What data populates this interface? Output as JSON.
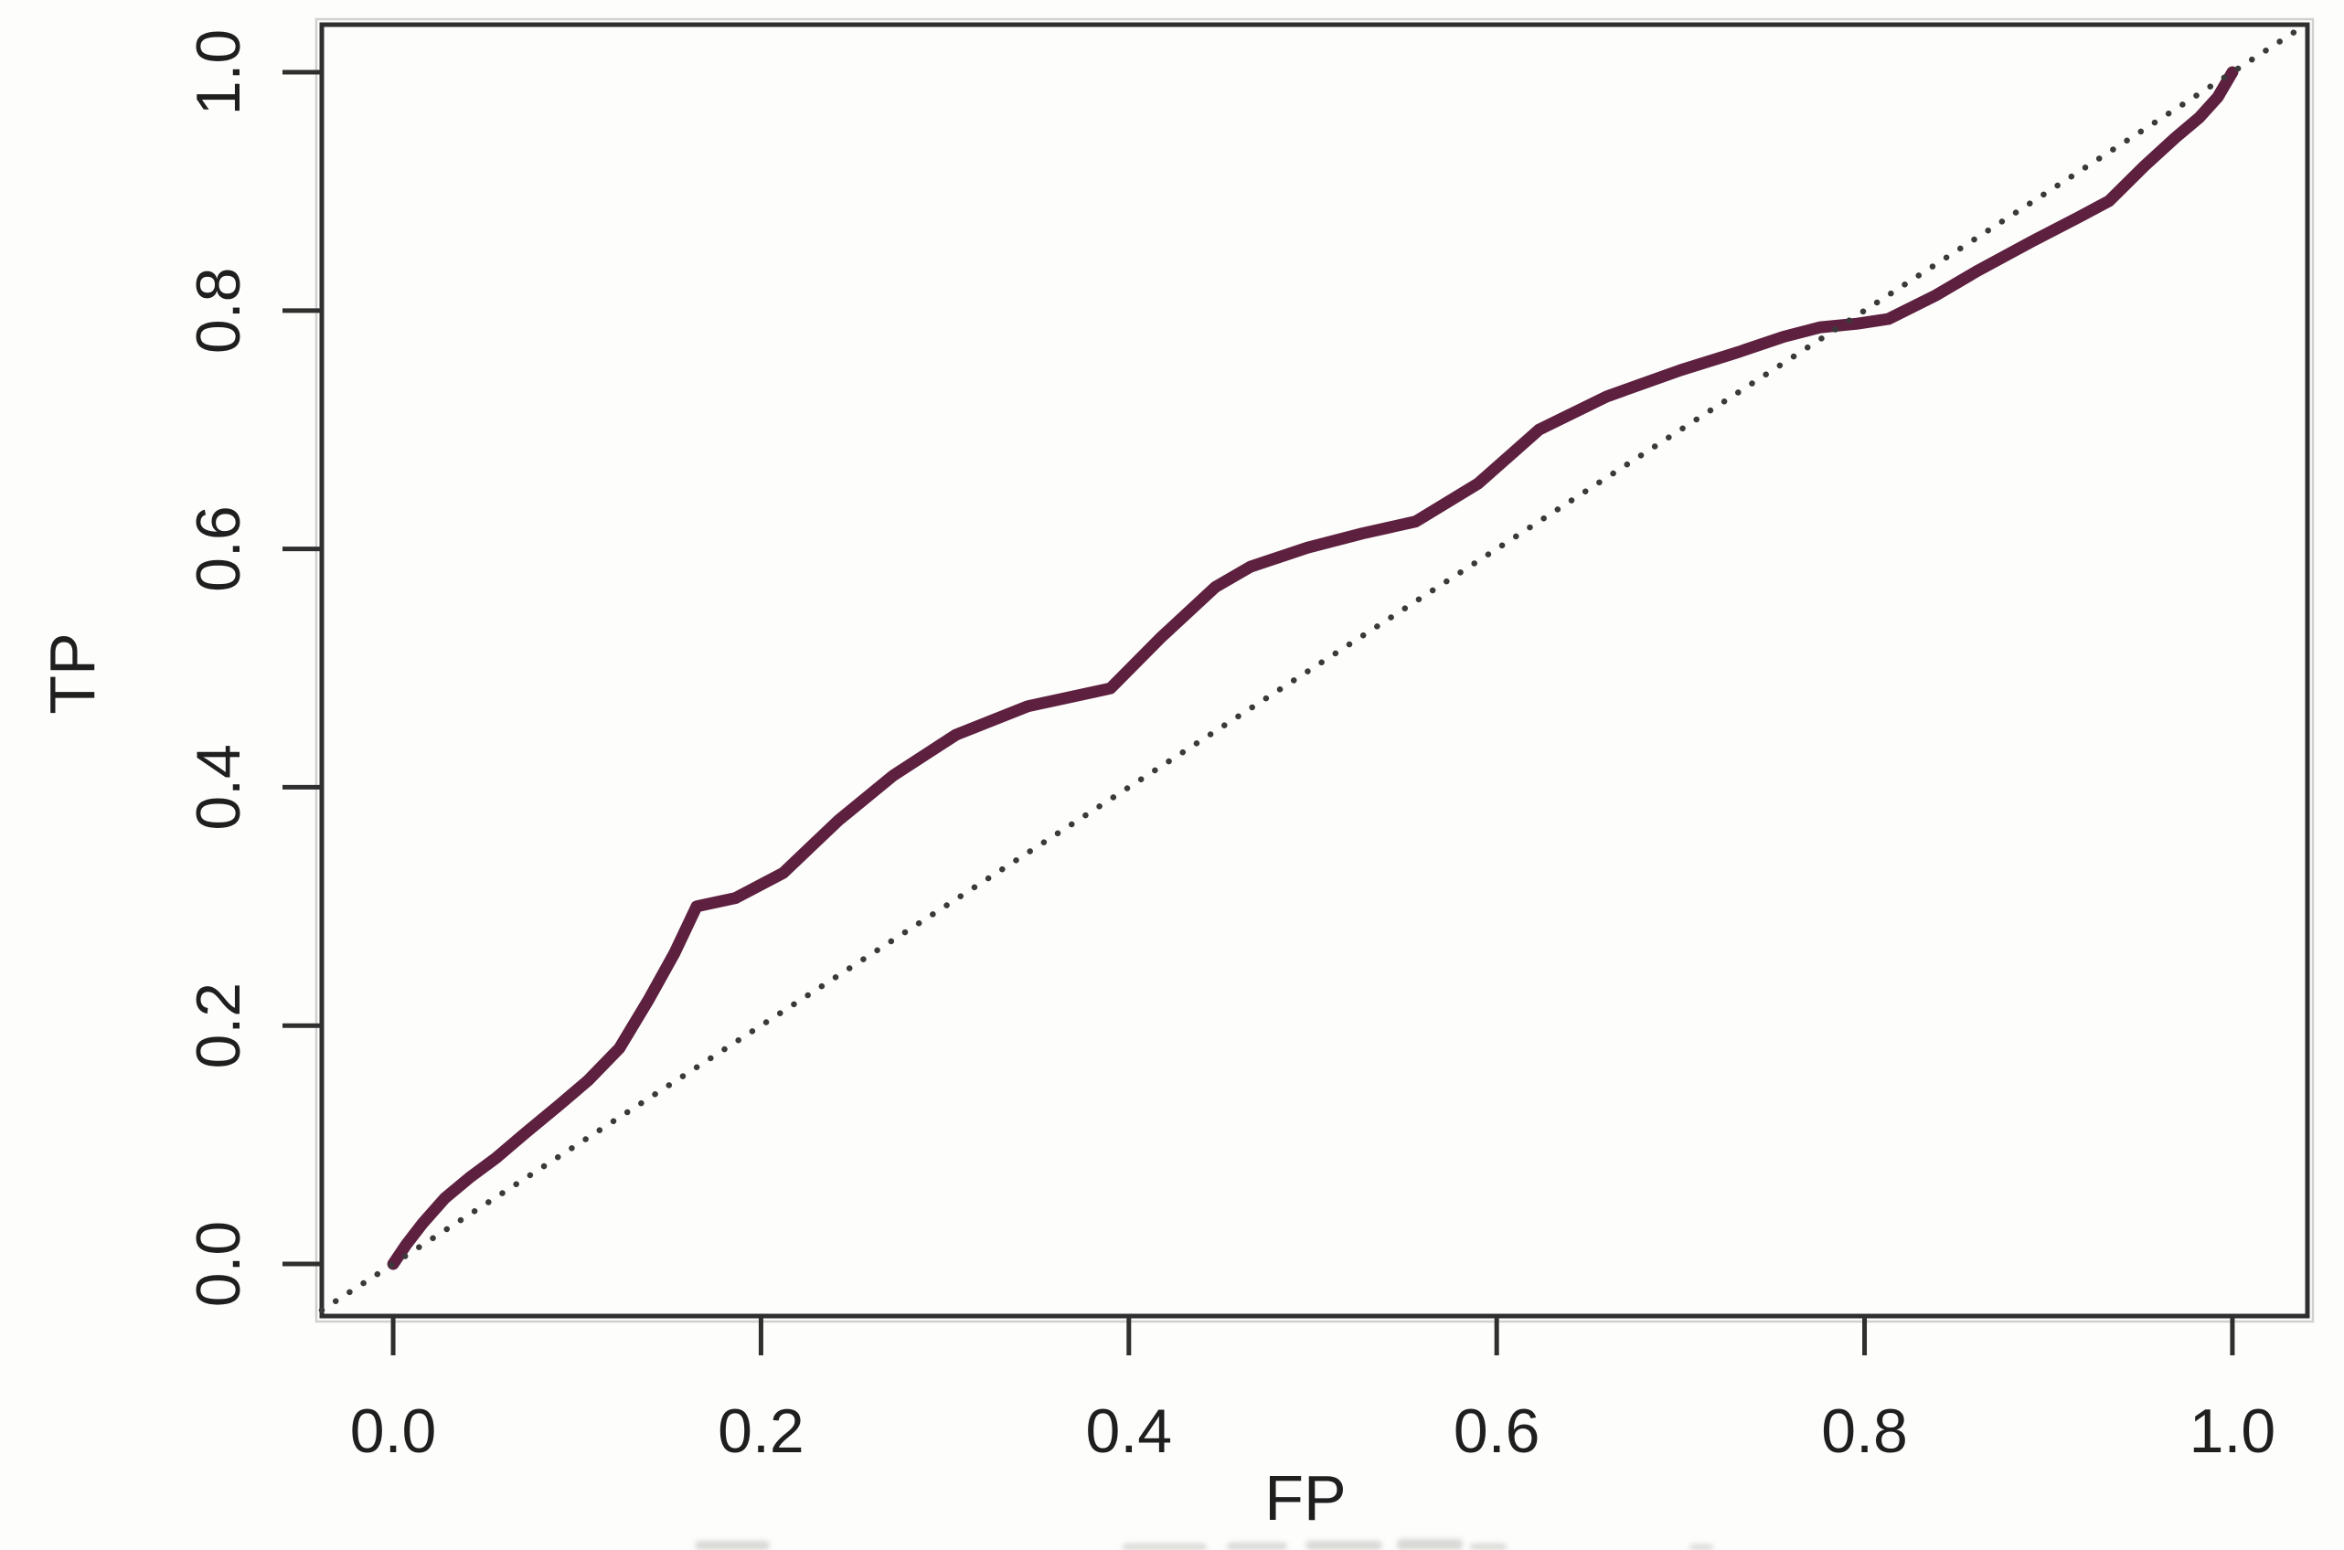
{
  "chart_data": {
    "type": "line",
    "title": "",
    "xlabel": "FP",
    "ylabel": "TP",
    "xlim": [
      -0.0388,
      1.0408
    ],
    "ylim": [
      -0.0437,
      1.0399
    ],
    "x_ticks": [
      0.0,
      0.2,
      0.4,
      0.6,
      0.8,
      1.0
    ],
    "y_ticks": [
      0.0,
      0.2,
      0.4,
      0.6,
      0.8,
      1.0
    ],
    "x_tick_labels": [
      "0.0",
      "0.2",
      "0.4",
      "0.6",
      "0.8",
      "1.0"
    ],
    "y_tick_labels": [
      "0.0",
      "0.2",
      "0.4",
      "0.6",
      "0.8",
      "1.0"
    ],
    "grid": false,
    "legend": "none",
    "series": [
      {
        "name": "roc-curve",
        "style": "solid",
        "color": "#5e203f",
        "stroke_width": 13,
        "points": [
          [
            0.0,
            0.0
          ],
          [
            0.007,
            0.016
          ],
          [
            0.016,
            0.034
          ],
          [
            0.028,
            0.055
          ],
          [
            0.042,
            0.073
          ],
          [
            0.056,
            0.089
          ],
          [
            0.072,
            0.11
          ],
          [
            0.09,
            0.133
          ],
          [
            0.106,
            0.154
          ],
          [
            0.123,
            0.181
          ],
          [
            0.139,
            0.222
          ],
          [
            0.153,
            0.261
          ],
          [
            0.165,
            0.3
          ],
          [
            0.186,
            0.307
          ],
          [
            0.212,
            0.328
          ],
          [
            0.242,
            0.372
          ],
          [
            0.272,
            0.41
          ],
          [
            0.306,
            0.444
          ],
          [
            0.345,
            0.468
          ],
          [
            0.39,
            0.483
          ],
          [
            0.417,
            0.525
          ],
          [
            0.447,
            0.568
          ],
          [
            0.466,
            0.585
          ],
          [
            0.497,
            0.601
          ],
          [
            0.527,
            0.613
          ],
          [
            0.556,
            0.623
          ],
          [
            0.59,
            0.655
          ],
          [
            0.623,
            0.7
          ],
          [
            0.66,
            0.728
          ],
          [
            0.7,
            0.75
          ],
          [
            0.731,
            0.765
          ],
          [
            0.756,
            0.778
          ],
          [
            0.776,
            0.786
          ],
          [
            0.796,
            0.789
          ],
          [
            0.813,
            0.793
          ],
          [
            0.839,
            0.813
          ],
          [
            0.861,
            0.833
          ],
          [
            0.891,
            0.858
          ],
          [
            0.916,
            0.878
          ],
          [
            0.933,
            0.892
          ],
          [
            0.952,
            0.921
          ],
          [
            0.969,
            0.945
          ],
          [
            0.982,
            0.962
          ],
          [
            0.992,
            0.979
          ],
          [
            1.0,
            1.0
          ]
        ]
      },
      {
        "name": "chance-diagonal",
        "style": "dotted",
        "color": "#3a3a3a",
        "stroke_width": 6.5,
        "points": [
          [
            -0.0388,
            -0.0388
          ],
          [
            1.0399,
            1.0399
          ]
        ]
      }
    ],
    "colors": {
      "axis": "#2f2f2f",
      "text": "#1f1f1f",
      "background": "#fdfdfc",
      "curve": "#5e203f",
      "diagonal": "#3a3a3a"
    }
  }
}
